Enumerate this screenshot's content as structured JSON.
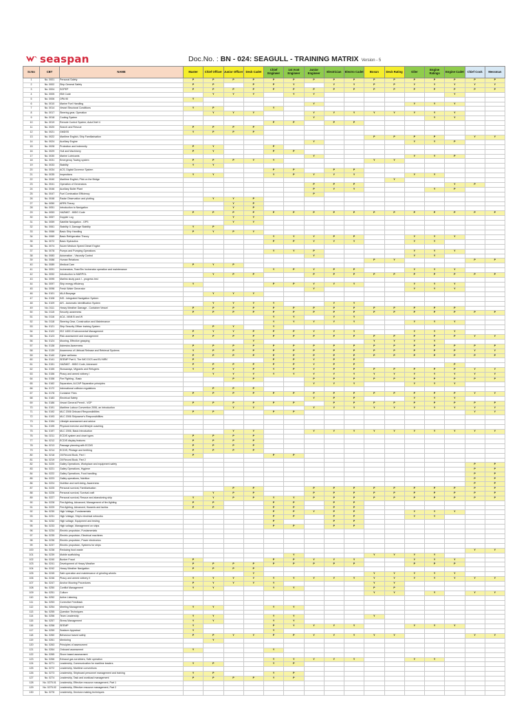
{
  "header": {
    "logo_text": "seaspan",
    "doc_label": "Doc.No. : ",
    "doc_number": "BN - 024: SEAGULL - TRAINING MATRIX",
    "version": "Version - 5"
  },
  "columns": {
    "sr_no": "Sr.No",
    "cbt": "CBT",
    "name": "NAME",
    "roles": [
      {
        "label": "Master",
        "group": "deck"
      },
      {
        "label": "Chief Officer",
        "group": "deck"
      },
      {
        "label": "Junior Officer",
        "group": "deck"
      },
      {
        "label": "Deck Cadet",
        "group": "deck"
      },
      {
        "label": "Chief Engineer",
        "group": "engine"
      },
      {
        "label": "1st Asst Engineer",
        "group": "engine"
      },
      {
        "label": "Junior Engineer",
        "group": "engine"
      },
      {
        "label": "Electrician",
        "group": "engine"
      },
      {
        "label": "Electro Cadet",
        "group": "engine"
      },
      {
        "label": "Bosun",
        "group": "deck"
      },
      {
        "label": "Deck Rating",
        "group": "deck"
      },
      {
        "label": "Oiler",
        "group": "engine"
      },
      {
        "label": "Engine Ratings",
        "group": "engine"
      },
      {
        "label": "Engine Cadet",
        "group": "engine"
      },
      {
        "label": "Chief Cook",
        "group": "galley"
      },
      {
        "label": "Messman",
        "group": "galley"
      }
    ]
  },
  "legend_colors": {
    "deck": "#f5ee2c",
    "engine": "#8fcc4c",
    "galley": "#d7e8f4",
    "active_cell": "#f8f4a6",
    "left_header": "#f9d9c4"
  },
  "rows": [
    {
      "sr": "1",
      "cbt": "No. 0001",
      "name": "Personal Safety",
      "m": "PPPPPPPPPPPPPPPP"
    },
    {
      "sr": "2",
      "cbt": "No. 0002",
      "name": "Ship General Safety",
      "m": "PP.PPY.YYPPYYYYY"
    },
    {
      "sr": "3",
      "cbt": "No. 0004",
      "name": "SOPEP",
      "m": "PPPPPPPPPPPPPPPP"
    },
    {
      "sr": "4",
      "cbt": "No. 0005",
      "name": "ISM Code",
      "m": ".YYY.YY......Y.."
    },
    {
      "sr": "5",
      "cbt": "No. 0006",
      "name": "OPA 90",
      "m": "Y..............."
    },
    {
      "sr": "6",
      "cbt": "No. 0010",
      "name": "Marine Fuel Handling",
      "m": "......Y....YYY.."
    },
    {
      "sr": "7",
      "cbt": "No. 0014",
      "name": "Vessel Structural Conditions",
      "m": "YP..Y..........."
    },
    {
      "sr": "8",
      "cbt": "No. 0017",
      "name": "Steering gear, Operation",
      "m": ".YYY..YYYYYYYY.."
    },
    {
      "sr": "9",
      "cbt": "No. 0018",
      "name": "Cooling System",
      "m": "......Y.....YY.."
    },
    {
      "sr": "10",
      "cbt": "No. 0019",
      "name": "Remote Control System; AutoChief 4",
      "m": "....PP.PP......."
    },
    {
      "sr": "11",
      "cbt": "No. 0020",
      "name": "Search and Rescue",
      "m": "PPPP............"
    },
    {
      "sr": "12",
      "cbt": "No. 0021",
      "name": "GMDSS",
      "m": "YPPP............"
    },
    {
      "sr": "13",
      "cbt": "No. 0022",
      "name": "Maritime English, Ship Familiarisation",
      "m": ".........PPPP.YY"
    },
    {
      "sr": "14",
      "cbt": "No. 0024",
      "name": "Auxiliary Engine",
      "m": "......Y....YYP.."
    },
    {
      "sr": "15",
      "cbt": "No. 0028",
      "name": "Protection and Indemnity",
      "m": "PY..P..........."
    },
    {
      "sr": "16",
      "cbt": "No. 0029",
      "name": "Hull and Machinery",
      "m": "PY..PP.........."
    },
    {
      "sr": "17",
      "cbt": "No. 0030",
      "name": "Marine Lubricants",
      "m": "......Y....YYP.."
    },
    {
      "sr": "18",
      "cbt": "No. 0031",
      "name": "Emergency Towing system",
      "m": "PPPYY....YY....."
    },
    {
      "sr": "19",
      "cbt": "No. 0033",
      "name": "Stability",
      "m": "YY.............."
    },
    {
      "sr": "20",
      "cbt": "No. 0034",
      "name": "ACS, Digital Governor System",
      "m": "....PP.PP......."
    },
    {
      "sr": "21",
      "cbt": "No. 0035",
      "name": "Inspections",
      "m": "YY..YPYYY..YY..."
    },
    {
      "sr": "22",
      "cbt": "No. 0040",
      "name": "Maritime English, Pilot on the Bridge",
      "m": "..........Y....."
    },
    {
      "sr": "23",
      "cbt": "No. 0041",
      "name": "Operation of Generators",
      "m": "......PPP....YP.."
    },
    {
      "sr": "24",
      "cbt": "No. 0046",
      "name": "Auxiliary Boiler Plant",
      "m": "......PYY...YP.."
    },
    {
      "sr": "25",
      "cbt": "No. 0047",
      "name": "Fuel Combustion Efficiency",
      "m": "......P........."
    },
    {
      "sr": "26",
      "cbt": "No. 0048",
      "name": "Radar Observation and plotting",
      "m": ".YYP............"
    },
    {
      "sr": "27",
      "cbt": "No. 0050",
      "name": "ARPA Theory",
      "m": "..YP............"
    },
    {
      "sr": "28",
      "cbt": "No. 0051",
      "name": "Introduction to Navigation",
      "m": "..YP............"
    },
    {
      "sr": "29",
      "cbt": "No. 0053",
      "name": "HAZMAT - IMDG Code",
      "m": "PPPPPPPPPPPPPPPP"
    },
    {
      "sr": "30",
      "cbt": "No. 0057",
      "name": "Doppler Log",
      "m": "..YY............"
    },
    {
      "sr": "31",
      "cbt": "No. 0059",
      "name": "Satellite Navigation - GPS",
      "m": "..YY............"
    },
    {
      "sr": "32",
      "cbt": "No. 0061",
      "name": "Stability II, Damage Stability",
      "m": "YP.............."
    },
    {
      "sr": "33",
      "cbt": "No. 0066",
      "name": "Basic Ship Handling",
      "m": "PYPY............"
    },
    {
      "sr": "34",
      "cbt": "No. 0069",
      "name": "Basic Refrigeration Theory",
      "m": "....YYYPP..YYY.."
    },
    {
      "sr": "35",
      "cbt": "No. 0072",
      "name": "Basic Hydraulics",
      "m": "....PPYYY..YY..."
    },
    {
      "sr": "36",
      "cbt": "No. 0074",
      "name": "Sulzer Medium Speed Diesel Engine",
      "m": "................"
    },
    {
      "sr": "37",
      "cbt": "No. 0078",
      "name": "Pumps and Pumping Operations",
      "m": "....YYP....YYY.."
    },
    {
      "sr": "38",
      "cbt": "No. 0083",
      "name": "Automation - Viscosity Control",
      "m": "......Y....YY..."
    },
    {
      "sr": "39",
      "cbt": "No. 0088",
      "name": "Human Relations",
      "m": ".........PY...PP"
    },
    {
      "sr": "40",
      "cbt": "No. 0089",
      "name": "Medical Care",
      "m": "PYP............."
    },
    {
      "sr": "41",
      "cbt": "No. 0091",
      "name": "Incinerators, TeamTec Incinerator operation and maintenance",
      "m": "....YPYPP..YYY.."
    },
    {
      "sr": "42",
      "cbt": "No. 0092",
      "name": "Introduction to MARPOL",
      "m": ".YPP..PPPPPPPPPP"
    },
    {
      "sr": "43",
      "cbt": "No. 0095",
      "name": "Marlins study pack I - progress test",
      "m": "................"
    },
    {
      "sr": "44",
      "cbt": "No. 0097",
      "name": "Ship energy efficiency",
      "m": "Y...PPYYY..YYY.."
    },
    {
      "sr": "45",
      "cbt": "No. 0098",
      "name": "Fresh Water Generator",
      "m": "......Y....YYY.."
    },
    {
      "sr": "46",
      "cbt": "No. 0101",
      "name": "IALA Buoyage",
      "m": ".YYY............"
    },
    {
      "sr": "47",
      "cbt": "No. 0108",
      "name": "INS - Integrated Navigation System",
      "m": "................"
    },
    {
      "sr": "48",
      "cbt": "No. 0109",
      "name": "AIS - Automatic Identification System",
      "m": ".YYYY..YY......."
    },
    {
      "sr": "49",
      "cbt": "No. 0111",
      "name": "Heavy Weather Damage - Container Vessel",
      "m": "PPPPPPPPPPPPPP.."
    },
    {
      "sr": "50",
      "cbt": "No. 0115",
      "name": "Security awareness",
      "m": "PPPPPPPPPPPPPPPP"
    },
    {
      "sr": "51",
      "cbt": "No. 0116",
      "name": "ACA - MAN B and W",
      "m": "....YY.YY......."
    },
    {
      "sr": "52",
      "cbt": "No. 0118",
      "name": "Steering Gear, Construction and Maintenance",
      "m": "....YYYYY..YYY.."
    },
    {
      "sr": "53",
      "cbt": "No. 0121",
      "name": "Ship Security Officer training System",
      "m": ".PY.Y..........."
    },
    {
      "sr": "54",
      "cbt": "No. 0122",
      "name": "ISO 14001 Environmental Management",
      "m": "PYYPPPYYY..YYY.."
    },
    {
      "sr": "55",
      "cbt": "No. 0123",
      "name": "Risk assessment and management",
      "m": "PPPPPPPPPPPPPPYY"
    },
    {
      "sr": "56",
      "cbt": "No. 0124",
      "name": "Mooring, Effective grasping",
      "m": "...Y.....YYYY..."
    },
    {
      "sr": "57",
      "cbt": "No. 0138",
      "name": "Asbestos Awareness",
      "m": "PPPPPPPPPPPPPPPP"
    },
    {
      "sr": "58",
      "cbt": "No. 0139",
      "name": "Awareness of Lifeboat Release and Retrieval Systems",
      "m": "YPPPPPPPPPPPPPYY"
    },
    {
      "sr": "59",
      "cbt": "No. 0140",
      "name": "Cyber wellness",
      "m": "PPPPPPPPPPPPPPPP"
    },
    {
      "sr": "60",
      "cbt": "No. 0141",
      "name": "SEEMP Part II, The IMO DCS and EU MRV",
      "m": "P...PPYPP......."
    },
    {
      "sr": "61",
      "cbt": "No. 0151",
      "name": "HAZMAT - IMDG Code, Advanced",
      "m": "PPPPPPYPP....P.."
    },
    {
      "sr": "62",
      "cbt": "No. 0155",
      "name": "Stowaways, Migrants and Refugees",
      "m": "YPYPYPYPPPPPPPYY"
    },
    {
      "sr": "63",
      "cbt": "No. 0156",
      "name": "Piracy and armed robbery I",
      "m": ".YYYYYYYYYYYYYYY"
    },
    {
      "sr": "64",
      "cbt": "No. 0158",
      "name": "Fire Fighting - Basic",
      "m": "..PP..PPPPPPPPPP"
    },
    {
      "sr": "65",
      "cbt": "No. 0162",
      "name": "Separators, ALCAP Separation principles",
      "m": "......YYY..YYY.."
    },
    {
      "sr": "66",
      "cbt": "No. 0172",
      "name": "International collision regulations",
      "m": ".PPP............"
    },
    {
      "sr": "67",
      "cbt": "No. 0178",
      "name": "Container Fires",
      "m": "PPPPPPPPPPPPPPYY"
    },
    {
      "sr": "68",
      "cbt": "No. 0183",
      "name": "Electrical Safety",
      "m": "......YPP..YYY.."
    },
    {
      "sr": "69",
      "cbt": "No. 0186",
      "name": "Vessel General Permit - VGP",
      "m": "PPPPPP.PPPPPPPPP"
    },
    {
      "sr": "70",
      "cbt": "No. 0191",
      "name": "Maritime Labour Convention 2006, an Introduction",
      "m": "..YY..YYYYYYYYYY"
    },
    {
      "sr": "71",
      "cbt": "No. 0192",
      "name": "MLC 2006 Onboard Responsibilities",
      "m": "PP..PP........YY"
    },
    {
      "sr": "72",
      "cbt": "No. 0193",
      "name": "MLC 2006 Shipowner's Responsibilities",
      "m": "................"
    },
    {
      "sr": "73",
      "cbt": "No. 0194",
      "name": "Lifestyle assessment and advice",
      "m": "................"
    },
    {
      "sr": "74",
      "cbt": "No. 0195",
      "name": "Physical exercise and lifestyle coaching",
      "m": "................"
    },
    {
      "sr": "75",
      "cbt": "No. 0197",
      "name": "MLC 2006, Basic Introduction",
      "m": "..YY..YYYYYYYYYY"
    },
    {
      "sr": "76",
      "cbt": "No. 0211",
      "name": "ECDIS system and chart types",
      "m": "PPPP............"
    },
    {
      "sr": "77",
      "cbt": "No. 0212",
      "name": "ECDIS display features",
      "m": "PPPP............"
    },
    {
      "sr": "78",
      "cbt": "No. 0213",
      "name": "Passage planning with ECDIS",
      "m": "PPPP............"
    },
    {
      "sr": "79",
      "cbt": "No. 0214",
      "name": "ECDIS, Pilotage and berthing",
      "m": "PPPP............"
    },
    {
      "sr": "80",
      "cbt": "No. 0218",
      "name": "Oil Record Book, Part I",
      "m": "P...PP.........."
    },
    {
      "sr": "81",
      "cbt": "No. 0219",
      "name": "Oil Record Book, Part 2",
      "m": "................"
    },
    {
      "sr": "82",
      "cbt": "No. 0220",
      "name": "Galley Operations, Workplace and equipment safety",
      "m": "..............PP"
    },
    {
      "sr": "83",
      "cbt": "No. 0221",
      "name": "Galley Operations, Hygiene",
      "m": "..............PP"
    },
    {
      "sr": "84",
      "cbt": "No. 0222",
      "name": "Galley Operations, Food handling",
      "m": "..............PP"
    },
    {
      "sr": "85",
      "cbt": "No. 0223",
      "name": "Galley operations, Nutrition",
      "m": "..............PP"
    },
    {
      "sr": "86",
      "cbt": "No. 0224",
      "name": "Nutrition and well-being, Awareness",
      "m": "..............PP"
    },
    {
      "sr": "87",
      "cbt": "No. 0225",
      "name": "Personal survival, Familiarisation",
      "m": "..PP..PPPPPPPPPP"
    },
    {
      "sr": "88",
      "cbt": "No. 0226",
      "name": "Personal survival, Survival craft",
      "m": ".YPP..PPPPPPPPPP"
    },
    {
      "sr": "89",
      "cbt": "No. 0227",
      "name": "Personal survival, Rescue and abandoning ship",
      "m": "YYPPYYPPPPPPPPPP"
    },
    {
      "sr": "90",
      "cbt": "No. 0228",
      "name": "Fire-fighting, Advanced, Management of fire-fighting",
      "m": "PP..PP.PP......."
    },
    {
      "sr": "91",
      "cbt": "No. 0229",
      "name": "Fire-fighting, Advanced, Hazards and tactics",
      "m": "PP..PP.PP......."
    },
    {
      "sr": "92",
      "cbt": "No. 0230",
      "name": "High Voltage, Fundamentals",
      "m": "....PPYPP..YYY.."
    },
    {
      "sr": "93",
      "cbt": "No. 0231",
      "name": "High Voltage, Ship's electrical networks",
      "m": "....PP.PP..YY..."
    },
    {
      "sr": "94",
      "cbt": "No. 0232",
      "name": "High voltage, Equipment and testing",
      "m": "....P..PP......."
    },
    {
      "sr": "95",
      "cbt": "No. 0233",
      "name": "High voltage, Management on ships",
      "m": "....PP.PP......."
    },
    {
      "sr": "96",
      "cbt": "No. 0234",
      "name": "Electric propulsion, Fundamentals",
      "m": "................"
    },
    {
      "sr": "97",
      "cbt": "No. 0235",
      "name": "Electric propulsion, Electrical machines",
      "m": "................"
    },
    {
      "sr": "98",
      "cbt": "No. 0236",
      "name": "Electric propulsion, Power electronics",
      "m": "................"
    },
    {
      "sr": "99",
      "cbt": "No. 0237",
      "name": "Electric propulsion, Systems for ships",
      "m": "................"
    },
    {
      "sr": "100",
      "cbt": "No. 0238",
      "name": "Reducing food waste",
      "m": "..............YY"
    },
    {
      "sr": "101",
      "cbt": "No. 0239",
      "name": "Mobile scaffolding",
      "m": ".....Y...YYYY..."
    },
    {
      "sr": "102",
      "cbt": "No. 0240",
      "name": "Bunker Fraud",
      "m": "P...PPYYY..YYY.."
    },
    {
      "sr": "103",
      "cbt": "No. 0241",
      "name": "Development of Heavy Weather",
      "m": "PPPPPPPPP..PPP.."
    },
    {
      "sr": "104",
      "cbt": "No. 0242",
      "name": "Heavy Weather Navigation",
      "m": "PPPP............"
    },
    {
      "sr": "105",
      "cbt": "No. 0245",
      "name": "Safe operation and maintenance of grinding wheels",
      "m": "...Y.....YYYYY.."
    },
    {
      "sr": "106",
      "cbt": "No. 0246",
      "name": "Piracy and armed robbery II",
      "m": "YYYYYYYYYYYYYYYY"
    },
    {
      "sr": "107",
      "cbt": "No. 0247",
      "name": "Anchor Mooring Procedures",
      "m": "PYYYY....YY....."
    },
    {
      "sr": "108",
      "cbt": "No. 0250",
      "name": "Conflict Management",
      "m": "YY..YY...PP....."
    },
    {
      "sr": "109",
      "cbt": "No. 0251",
      "name": "Culture",
      "m": ".........YY.Y.YY"
    },
    {
      "sr": "110",
      "cbt": "No. 0252",
      "name": "Active Listening",
      "m": "................"
    },
    {
      "sr": "111",
      "cbt": "No. 0253",
      "name": "Corrective Feedback",
      "m": "................"
    },
    {
      "sr": "112",
      "cbt": "No. 0254",
      "name": "Meeting Management",
      "m": "YY..YY.........."
    },
    {
      "sr": "113",
      "cbt": "No. 0255",
      "name": "Question Techniques",
      "m": "................"
    },
    {
      "sr": "114",
      "cbt": "No. 0256",
      "name": "Team Leadership",
      "m": "YY..YY...Y......"
    },
    {
      "sr": "115",
      "cbt": "No. 0257",
      "name": "Stress Management",
      "m": "YY..YY.........."
    },
    {
      "sr": "116",
      "cbt": "No. 0258",
      "name": "SEEMP",
      "m": "Y...PYYYY..YYY.."
    },
    {
      "sr": "117",
      "cbt": "No. 0259",
      "name": "Seafarer Appraisal",
      "m": "Y...Y..........."
    },
    {
      "sr": "118",
      "cbt": "No. 0260",
      "name": "Behaviour based safety",
      "m": "PPYYPPYYYYY...YY"
    },
    {
      "sr": "119",
      "cbt": "No. 0261",
      "name": "Mentoring",
      "m": ".Y.............."
    },
    {
      "sr": "120",
      "cbt": "No. 0263",
      "name": "Principles of assessment",
      "m": "................"
    },
    {
      "sr": "121",
      "cbt": "No. 0264",
      "name": "Onboard assessment",
      "m": "Y...Y..........."
    },
    {
      "sr": "122",
      "cbt": "No. 0265",
      "name": "Shore based assessment",
      "m": "................"
    },
    {
      "sr": "123",
      "cbt": "No. 0266",
      "name": "Exhaust gas scrubbers, Safe operation",
      "m": "....YYYYY..YY..."
    },
    {
      "sr": "124",
      "cbt": "No. 0271",
      "name": "Leadership, Communication for maritime leaders",
      "m": "YP..YP.........."
    },
    {
      "sr": "125",
      "cbt": "No. 0272",
      "name": "Leadership, Maritime conventions",
      "m": "................"
    },
    {
      "sr": "126",
      "cbt": "No. 0273",
      "name": "Leadership, Shipboard personnel management and training",
      "m": "YP..YP.........."
    },
    {
      "sr": "127",
      "cbt": "No. 0274",
      "name": "Leadership, Task and workload management",
      "m": "PPPPYP.........."
    },
    {
      "sr": "128",
      "cbt": "No. 0275.01",
      "name": "Leadership, Effective resource management, Part 1",
      "m": "................"
    },
    {
      "sr": "129",
      "cbt": "No. 0275.02",
      "name": "Leadership, Effective resource management, Part 2",
      "m": "................"
    },
    {
      "sr": "130",
      "cbt": "No. 0276",
      "name": "Leadership, Decision making techniques",
      "m": "................"
    }
  ]
}
